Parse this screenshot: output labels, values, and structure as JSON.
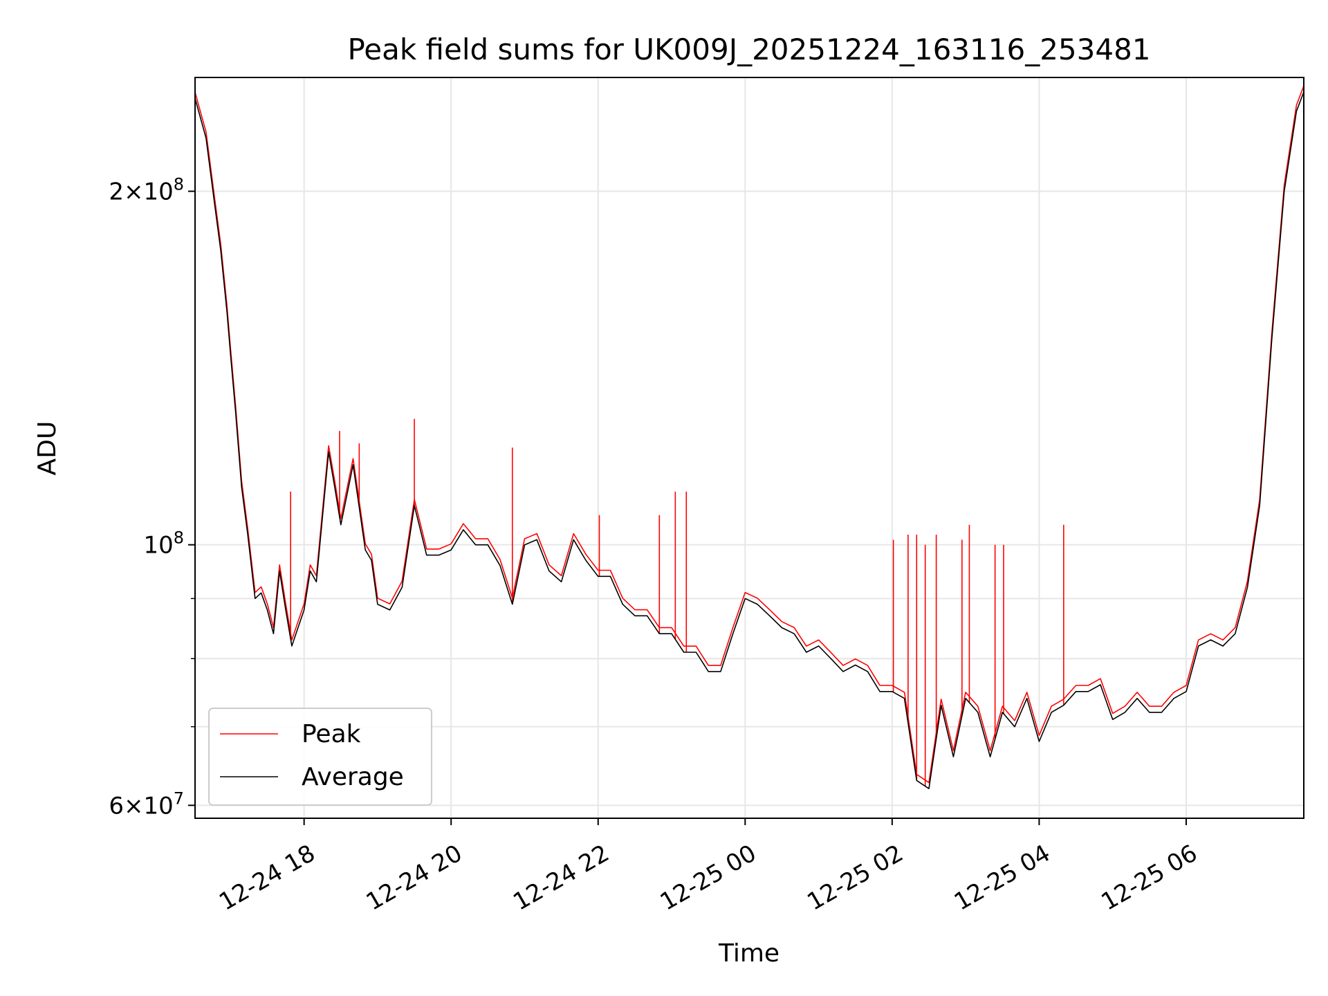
{
  "chart_data": {
    "type": "line",
    "title": "Peak field sums for UK009J_20251224_163116_253481",
    "xlabel": "Time",
    "ylabel": "ADU",
    "yscale": "log",
    "xlim": [
      "2025-12-24 16:31",
      "2025-12-25 07:36"
    ],
    "ylim": [
      58500000,
      250000000
    ],
    "grid": true,
    "legend_position": "lower-left",
    "colors": {
      "peak": "#ff0000",
      "average": "#000000"
    },
    "x_ticks": [
      {
        "t": "2025-12-24 18:00",
        "label": "12-24 18"
      },
      {
        "t": "2025-12-24 20:00",
        "label": "12-24 20"
      },
      {
        "t": "2025-12-24 22:00",
        "label": "12-24 22"
      },
      {
        "t": "2025-12-25 00:00",
        "label": "12-25 00"
      },
      {
        "t": "2025-12-25 02:00",
        "label": "12-25 02"
      },
      {
        "t": "2025-12-25 04:00",
        "label": "12-25 04"
      },
      {
        "t": "2025-12-25 06:00",
        "label": "12-25 06"
      }
    ],
    "y_major_ticks": [
      {
        "v": 60000000,
        "base": "6",
        "exp": "7"
      },
      {
        "v": 100000000,
        "base": "",
        "exp": "8"
      },
      {
        "v": 200000000,
        "base": "2",
        "exp": "8"
      }
    ],
    "y_minor_ticks": [
      70000000,
      80000000,
      90000000
    ],
    "series": [
      {
        "name": "Average",
        "color": "#000000",
        "x": [
          "2025-12-24 16:31",
          "2025-12-24 16:40",
          "2025-12-24 16:47",
          "2025-12-24 16:52",
          "2025-12-24 16:57",
          "2025-12-24 17:00",
          "2025-12-24 17:04",
          "2025-12-24 17:09",
          "2025-12-24 17:14",
          "2025-12-24 17:20",
          "2025-12-24 17:25",
          "2025-12-24 17:30",
          "2025-12-24 17:35",
          "2025-12-24 17:40",
          "2025-12-24 17:45",
          "2025-12-24 17:50",
          "2025-12-24 18:00",
          "2025-12-24 18:05",
          "2025-12-24 18:10",
          "2025-12-24 18:20",
          "2025-12-24 18:25",
          "2025-12-24 18:30",
          "2025-12-24 18:40",
          "2025-12-24 18:50",
          "2025-12-24 18:55",
          "2025-12-24 19:00",
          "2025-12-24 19:10",
          "2025-12-24 19:20",
          "2025-12-24 19:30",
          "2025-12-24 19:40",
          "2025-12-24 19:50",
          "2025-12-24 20:00",
          "2025-12-24 20:10",
          "2025-12-24 20:20",
          "2025-12-24 20:30",
          "2025-12-24 20:40",
          "2025-12-24 20:50",
          "2025-12-24 21:00",
          "2025-12-24 21:10",
          "2025-12-24 21:20",
          "2025-12-24 21:30",
          "2025-12-24 21:40",
          "2025-12-24 21:50",
          "2025-12-24 22:00",
          "2025-12-24 22:10",
          "2025-12-24 22:20",
          "2025-12-24 22:30",
          "2025-12-24 22:40",
          "2025-12-24 22:50",
          "2025-12-24 23:00",
          "2025-12-24 23:10",
          "2025-12-24 23:20",
          "2025-12-24 23:30",
          "2025-12-24 23:40",
          "2025-12-24 23:50",
          "2025-12-25 00:00",
          "2025-12-25 00:10",
          "2025-12-25 00:20",
          "2025-12-25 00:30",
          "2025-12-25 00:40",
          "2025-12-25 00:50",
          "2025-12-25 01:00",
          "2025-12-25 01:10",
          "2025-12-25 01:20",
          "2025-12-25 01:30",
          "2025-12-25 01:40",
          "2025-12-25 01:50",
          "2025-12-25 02:00",
          "2025-12-25 02:10",
          "2025-12-25 02:20",
          "2025-12-25 02:30",
          "2025-12-25 02:40",
          "2025-12-25 02:50",
          "2025-12-25 03:00",
          "2025-12-25 03:10",
          "2025-12-25 03:20",
          "2025-12-25 03:30",
          "2025-12-25 03:40",
          "2025-12-25 03:50",
          "2025-12-25 04:00",
          "2025-12-25 04:10",
          "2025-12-25 04:20",
          "2025-12-25 04:30",
          "2025-12-25 04:40",
          "2025-12-25 04:50",
          "2025-12-25 05:00",
          "2025-12-25 05:10",
          "2025-12-25 05:20",
          "2025-12-25 05:30",
          "2025-12-25 05:40",
          "2025-12-25 05:50",
          "2025-12-25 06:00",
          "2025-12-25 06:10",
          "2025-12-25 06:20",
          "2025-12-25 06:30",
          "2025-12-25 06:40",
          "2025-12-25 06:50",
          "2025-12-25 07:00",
          "2025-12-25 07:10",
          "2025-12-25 07:20",
          "2025-12-25 07:30",
          "2025-12-25 07:36"
        ],
        "values": [
          240000000,
          222000000,
          195000000,
          178000000,
          158000000,
          145000000,
          130000000,
          112000000,
          102000000,
          90000000,
          91000000,
          88000000,
          84000000,
          95000000,
          88000000,
          82000000,
          88000000,
          95000000,
          93000000,
          120000000,
          112000000,
          104000000,
          117000000,
          99000000,
          97000000,
          89000000,
          88000000,
          92000000,
          108000000,
          98000000,
          98000000,
          99000000,
          103000000,
          100000000,
          100000000,
          96000000,
          89000000,
          100000000,
          101000000,
          95000000,
          93000000,
          101000000,
          97000000,
          94000000,
          94000000,
          89000000,
          87000000,
          87000000,
          84000000,
          84000000,
          81000000,
          81000000,
          78000000,
          78000000,
          84000000,
          90000000,
          89000000,
          87000000,
          85000000,
          84000000,
          81000000,
          82000000,
          80000000,
          78000000,
          79000000,
          78000000,
          75000000,
          75000000,
          74000000,
          63000000,
          62000000,
          73000000,
          66000000,
          74000000,
          72000000,
          66000000,
          72000000,
          70000000,
          74000000,
          68000000,
          72000000,
          73000000,
          75000000,
          75000000,
          76000000,
          71000000,
          72000000,
          74000000,
          72000000,
          72000000,
          74000000,
          75000000,
          82000000,
          83000000,
          82000000,
          84000000,
          92000000,
          108000000,
          150000000,
          200000000,
          234000000,
          243000000
        ]
      },
      {
        "name": "Peak",
        "color": "#ff0000",
        "spikes": [
          {
            "t": "2025-12-24 17:49",
            "v": 111000000
          },
          {
            "t": "2025-12-24 18:29",
            "v": 125000000
          },
          {
            "t": "2025-12-24 18:45",
            "v": 122000000
          },
          {
            "t": "2025-12-24 19:30",
            "v": 128000000
          },
          {
            "t": "2025-12-24 20:50",
            "v": 121000000
          },
          {
            "t": "2025-12-24 22:01",
            "v": 106000000
          },
          {
            "t": "2025-12-24 22:50",
            "v": 106000000
          },
          {
            "t": "2025-12-24 23:03",
            "v": 111000000
          },
          {
            "t": "2025-12-24 23:12",
            "v": 111000000
          },
          {
            "t": "2025-12-25 02:01",
            "v": 101000000
          },
          {
            "t": "2025-12-25 02:13",
            "v": 102000000
          },
          {
            "t": "2025-12-25 02:20",
            "v": 102000000
          },
          {
            "t": "2025-12-25 02:27",
            "v": 100000000
          },
          {
            "t": "2025-12-25 02:36",
            "v": 102000000
          },
          {
            "t": "2025-12-25 02:57",
            "v": 101000000
          },
          {
            "t": "2025-12-25 03:03",
            "v": 104000000
          },
          {
            "t": "2025-12-25 03:24",
            "v": 100000000
          },
          {
            "t": "2025-12-25 03:31",
            "v": 100000000
          },
          {
            "t": "2025-12-25 04:20",
            "v": 104000000
          }
        ]
      }
    ],
    "legend": [
      {
        "label": "Peak",
        "color": "#ff0000"
      },
      {
        "label": "Average",
        "color": "#000000"
      }
    ]
  }
}
